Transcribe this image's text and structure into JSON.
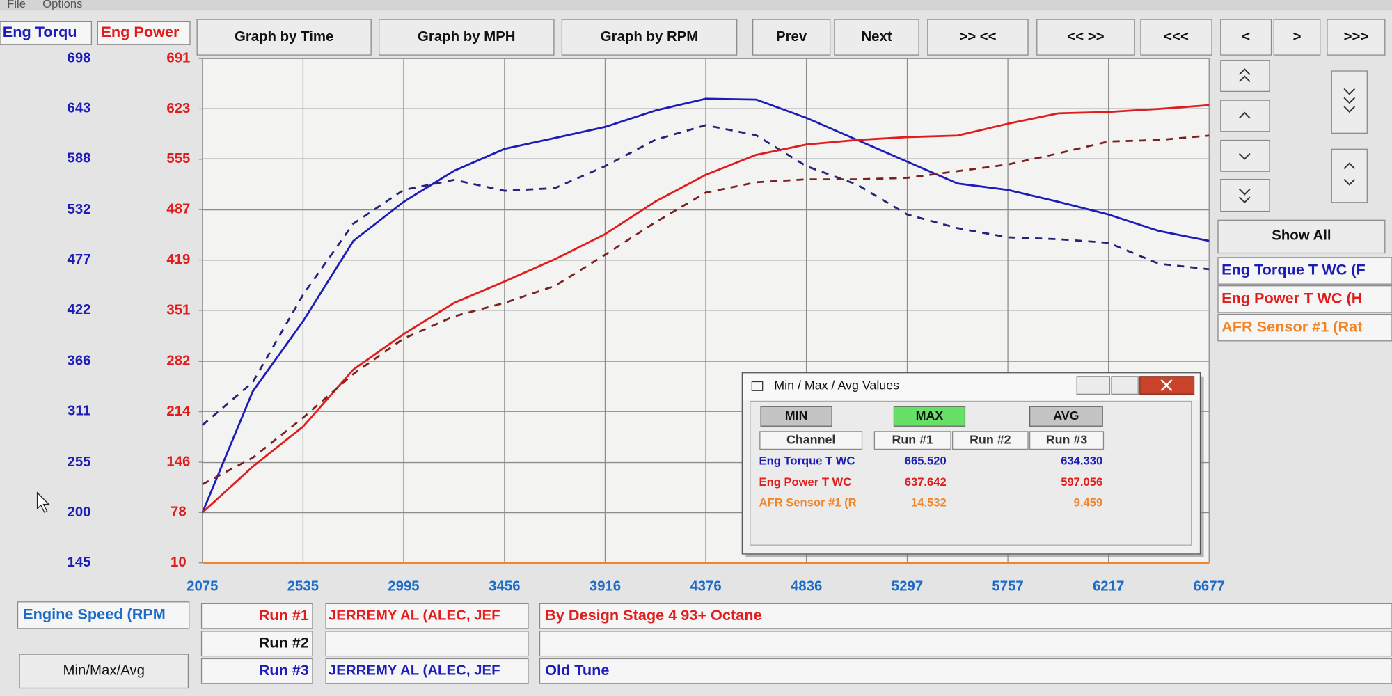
{
  "menu": [
    "File",
    "Options"
  ],
  "toolbar": [
    "Graph by Time",
    "Graph by MPH",
    "Graph by RPM",
    "Prev",
    "Next",
    ">> <<",
    "<< >>",
    "<<<",
    "<",
    ">",
    ">>>"
  ],
  "side_panel": {
    "show_all": "Show All",
    "channels": [
      "Eng Torque T WC (F",
      "Eng Power T WC (H",
      "AFR Sensor #1 (Rat"
    ]
  },
  "chart_data": {
    "type": "line",
    "ylabel": "Eng Torqu",
    "y2label": "Eng Power",
    "xlabel": "Engine Speed (RPM",
    "x": [
      2075,
      2305,
      2535,
      2765,
      2995,
      3226,
      3456,
      3686,
      3916,
      4146,
      4376,
      4606,
      4836,
      5066,
      5297,
      5527,
      5757,
      5987,
      6217,
      6447,
      6677
    ],
    "xlim": [
      2075,
      6677
    ],
    "xticks": [
      2075,
      2535,
      2995,
      3456,
      3916,
      4376,
      4836,
      5297,
      5757,
      6217,
      6677
    ],
    "ylim": [
      145,
      698
    ],
    "yticks": [
      698,
      643,
      588,
      532,
      477,
      422,
      366,
      311,
      255,
      200,
      145
    ],
    "y2lim": [
      10,
      691
    ],
    "y2ticks": [
      691,
      623,
      555,
      487,
      419,
      351,
      282,
      214,
      146,
      78,
      10
    ],
    "grid": true,
    "series": [
      {
        "color": "#1c1cb8",
        "dashed": false,
        "values": [
          200,
          333,
          410,
          498,
          541,
          575,
          599,
          611,
          623,
          641,
          654,
          653,
          633,
          609,
          585,
          561,
          554,
          541,
          527,
          509,
          498
        ]
      },
      {
        "color": "#23237a",
        "dashed": true,
        "values": [
          296,
          343,
          439,
          517,
          554,
          565,
          553,
          556,
          580,
          609,
          625,
          614,
          580,
          560,
          527,
          512,
          502,
          500,
          496,
          473,
          467
        ]
      },
      {
        "color": "#e01c1c",
        "dashed": false,
        "axis": "y2",
        "values": [
          78,
          140,
          194,
          271,
          319,
          361,
          390,
          420,
          454,
          498,
          534,
          561,
          575,
          581,
          585,
          587,
          603,
          617,
          619,
          623,
          628
        ]
      },
      {
        "color": "#7c1f1f",
        "dashed": true,
        "axis": "y2",
        "values": [
          116,
          152,
          206,
          265,
          313,
          343,
          361,
          384,
          426,
          470,
          510,
          524,
          528,
          528,
          530,
          539,
          548,
          563,
          579,
          581,
          587
        ]
      }
    ]
  },
  "runs": [
    {
      "label": "Run #1",
      "driver": "JERREMY AL (ALEC, JEF",
      "note": "By Design Stage 4 93+ Octane"
    },
    {
      "label": "Run #2"
    },
    {
      "label": "Run #3",
      "driver": "JERREMY AL (ALEC, JEF",
      "note": "Old Tune"
    }
  ],
  "min_max_button": "Min/Max/Avg",
  "dialog": {
    "title": "Min / Max / Avg Values",
    "buttons": [
      "MIN",
      "MAX",
      "AVG"
    ],
    "headers": [
      "Channel",
      "Run #1",
      "Run #2",
      "Run #3"
    ],
    "rows": [
      {
        "channel": "Eng Torque T WC",
        "run1": "665.520",
        "run3": "634.330"
      },
      {
        "channel": "Eng Power T WC",
        "run1": "637.642",
        "run3": "597.056"
      },
      {
        "channel": "AFR Sensor #1 (R",
        "run1": "14.532",
        "run3": "9.459"
      }
    ]
  }
}
